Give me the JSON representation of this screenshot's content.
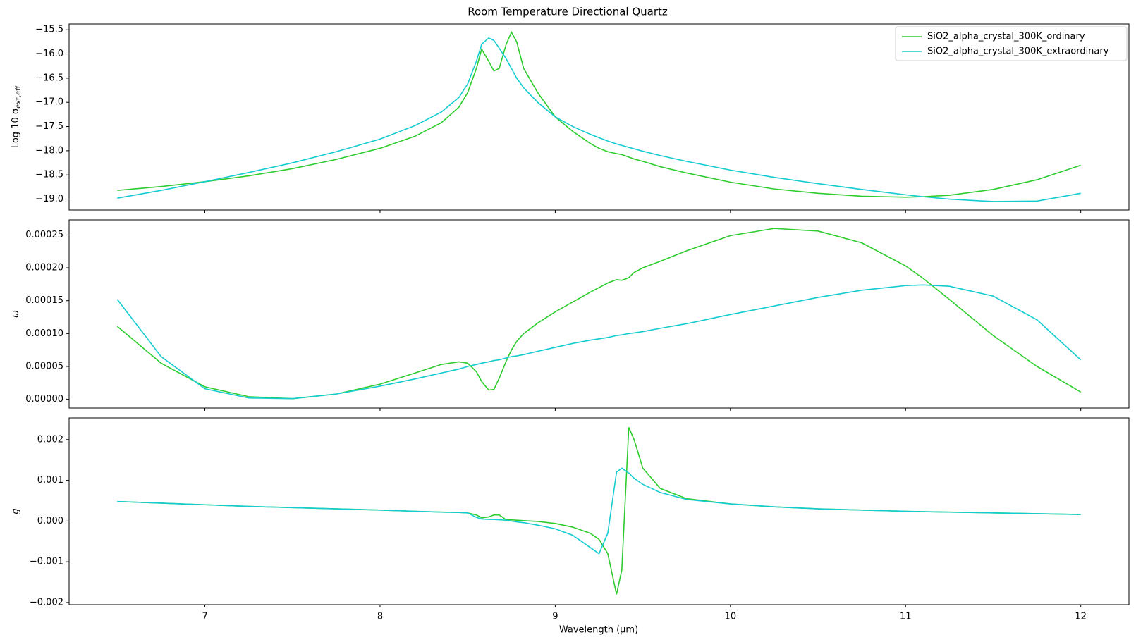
{
  "chart_data": [
    {
      "type": "line",
      "title": "Room Temperature Directional Quartz",
      "y_label": {
        "text": "Log 10 σ",
        "subscript": "ext,eff"
      },
      "legend": "upper right",
      "xlim": [
        6.225,
        12.275
      ],
      "ylim": [
        -19.225,
        -15.38
      ],
      "yticks": [
        {
          "value": -15.5,
          "label": "−15.5"
        },
        {
          "value": -16.0,
          "label": "−16.0"
        },
        {
          "value": -16.5,
          "label": "−16.5"
        },
        {
          "value": -17.0,
          "label": "−17.0"
        },
        {
          "value": -17.5,
          "label": "−17.5"
        },
        {
          "value": -18.0,
          "label": "−18.0"
        },
        {
          "value": -18.5,
          "label": "−18.5"
        },
        {
          "value": -19.0,
          "label": "−19.0"
        }
      ],
      "x": [
        6.5,
        6.75,
        7.0,
        7.25,
        7.5,
        7.75,
        8.0,
        8.2,
        8.35,
        8.45,
        8.5,
        8.55,
        8.58,
        8.62,
        8.65,
        8.68,
        8.72,
        8.75,
        8.78,
        8.82,
        8.9,
        9.0,
        9.1,
        9.2,
        9.25,
        9.3,
        9.35,
        9.38,
        9.42,
        9.45,
        9.5,
        9.6,
        9.75,
        10.0,
        10.25,
        10.5,
        10.75,
        11.0,
        11.1,
        11.25,
        11.5,
        11.75,
        12.0
      ],
      "series": [
        {
          "name": "SiO2_alpha_crystal_300K_ordinary",
          "color": "#2ecc2e",
          "values": [
            -18.82,
            -18.74,
            -18.64,
            -18.52,
            -18.37,
            -18.18,
            -17.95,
            -17.7,
            -17.42,
            -17.1,
            -16.8,
            -16.3,
            -15.9,
            -16.15,
            -16.35,
            -16.3,
            -15.8,
            -15.55,
            -15.75,
            -16.3,
            -16.8,
            -17.3,
            -17.6,
            -17.85,
            -17.95,
            -18.02,
            -18.06,
            -18.08,
            -18.13,
            -18.17,
            -18.22,
            -18.33,
            -18.46,
            -18.65,
            -18.79,
            -18.88,
            -18.94,
            -18.96,
            -18.95,
            -18.92,
            -18.8,
            -18.6,
            -18.3
          ]
        },
        {
          "name": "SiO2_alpha_crystal_300K_extraordinary",
          "color": "#14ccd0",
          "values": [
            -18.98,
            -18.82,
            -18.64,
            -18.45,
            -18.25,
            -18.02,
            -17.76,
            -17.48,
            -17.2,
            -16.9,
            -16.62,
            -16.15,
            -15.8,
            -15.67,
            -15.72,
            -15.88,
            -16.1,
            -16.3,
            -16.5,
            -16.7,
            -17.0,
            -17.3,
            -17.5,
            -17.66,
            -17.73,
            -17.8,
            -17.86,
            -17.89,
            -17.93,
            -17.96,
            -18.01,
            -18.1,
            -18.22,
            -18.4,
            -18.55,
            -18.68,
            -18.8,
            -18.91,
            -18.95,
            -19.0,
            -19.05,
            -19.04,
            -18.88
          ]
        }
      ]
    },
    {
      "type": "line",
      "y_label": {
        "text": "ω"
      },
      "xlim": [
        6.225,
        12.275
      ],
      "ylim": [
        -1.33e-05,
        0.000273
      ],
      "yticks": [
        {
          "value": 0,
          "label": "0.00000"
        },
        {
          "value": 5e-05,
          "label": "0.00005"
        },
        {
          "value": 0.0001,
          "label": "0.00010"
        },
        {
          "value": 0.00015,
          "label": "0.00015"
        },
        {
          "value": 0.0002,
          "label": "0.00020"
        },
        {
          "value": 0.00025,
          "label": "0.00025"
        }
      ],
      "x": [
        6.5,
        6.75,
        7.0,
        7.25,
        7.5,
        7.75,
        8.0,
        8.2,
        8.35,
        8.45,
        8.5,
        8.55,
        8.58,
        8.62,
        8.65,
        8.68,
        8.72,
        8.75,
        8.78,
        8.82,
        8.9,
        9.0,
        9.1,
        9.2,
        9.25,
        9.3,
        9.35,
        9.38,
        9.42,
        9.45,
        9.5,
        9.6,
        9.75,
        10.0,
        10.25,
        10.5,
        10.75,
        11.0,
        11.1,
        11.25,
        11.5,
        11.75,
        12.0
      ],
      "series": [
        {
          "color": "#2ecc2e",
          "values": [
            0.000111,
            5.5e-05,
            1.9e-05,
            4e-06,
            1e-06,
            8e-06,
            2.3e-05,
            4e-05,
            5.3e-05,
            5.7e-05,
            5.5e-05,
            4.2e-05,
            2.7e-05,
            1.4e-05,
            1.5e-05,
            3.2e-05,
            5.8e-05,
            7.5e-05,
            8.8e-05,
            0.0001,
            0.000116,
            0.000133,
            0.000148,
            0.000163,
            0.00017,
            0.000177,
            0.000182,
            0.000181,
            0.000185,
            0.000193,
            0.0002,
            0.00021,
            0.000226,
            0.000249,
            0.00026,
            0.000256,
            0.000238,
            0.000203,
            0.000184,
            0.000152,
            9.7e-05,
            5e-05,
            1.1e-05
          ]
        },
        {
          "color": "#14ccd0",
          "values": [
            0.000152,
            6.5e-05,
            1.6e-05,
            2e-06,
            1e-06,
            8e-06,
            2e-05,
            3.1e-05,
            4e-05,
            4.6e-05,
            5e-05,
            5.3e-05,
            5.5e-05,
            5.7e-05,
            5.9e-05,
            6e-05,
            6.3e-05,
            6.5e-05,
            6.6e-05,
            6.8e-05,
            7.3e-05,
            7.9e-05,
            8.5e-05,
            9e-05,
            9.2e-05,
            9.4e-05,
            9.7e-05,
            9.8e-05,
            0.0001,
            0.000101,
            0.000103,
            0.000108,
            0.000115,
            0.000129,
            0.000142,
            0.000155,
            0.000166,
            0.000173,
            0.000174,
            0.000172,
            0.000157,
            0.000121,
            6e-05
          ]
        }
      ]
    },
    {
      "type": "line",
      "y_label": {
        "text": "g"
      },
      "x_label": "Wavelength (μm)",
      "xlim": [
        6.225,
        12.275
      ],
      "ylim": [
        -0.002053,
        0.002533
      ],
      "xticks": [
        7,
        8,
        9,
        10,
        11,
        12
      ],
      "yticks": [
        {
          "value": -0.002,
          "label": "−0.002"
        },
        {
          "value": -0.001,
          "label": "−0.001"
        },
        {
          "value": 0,
          "label": "0.000"
        },
        {
          "value": 0.001,
          "label": "0.001"
        },
        {
          "value": 0.002,
          "label": "0.002"
        }
      ],
      "x": [
        6.5,
        6.75,
        7.0,
        7.25,
        7.5,
        7.75,
        8.0,
        8.2,
        8.35,
        8.45,
        8.5,
        8.55,
        8.58,
        8.62,
        8.65,
        8.68,
        8.72,
        8.75,
        8.78,
        8.82,
        8.9,
        9.0,
        9.1,
        9.2,
        9.25,
        9.3,
        9.35,
        9.38,
        9.42,
        9.45,
        9.5,
        9.6,
        9.75,
        10.0,
        10.25,
        10.5,
        10.75,
        11.0,
        11.1,
        11.25,
        11.5,
        11.75,
        12.0
      ],
      "series": [
        {
          "color": "#2ecc2e",
          "values": [
            0.00048,
            0.00044,
            0.0004,
            0.00036,
            0.00033,
            0.0003,
            0.00027,
            0.00024,
            0.00022,
            0.00021,
            0.0002,
            0.00015,
            8e-05,
            0.0001,
            0.00015,
            0.00015,
            3e-05,
            3e-05,
            2e-05,
            1e-05,
            -1e-05,
            -6e-05,
            -0.00015,
            -0.0003,
            -0.00045,
            -0.0008,
            -0.0018,
            -0.0012,
            0.0023,
            0.002,
            0.0013,
            0.0008,
            0.00055,
            0.00042,
            0.00035,
            0.0003,
            0.00027,
            0.00024,
            0.00023,
            0.00022,
            0.0002,
            0.00018,
            0.00016
          ]
        },
        {
          "color": "#14ccd0",
          "values": [
            0.00048,
            0.00044,
            0.0004,
            0.00036,
            0.00033,
            0.0003,
            0.00027,
            0.00024,
            0.00022,
            0.00021,
            0.0002,
            9e-05,
            5e-05,
            4e-05,
            4e-05,
            3e-05,
            2e-05,
            0.0,
            -2e-05,
            -4e-05,
            -0.0001,
            -0.00019,
            -0.00035,
            -0.00065,
            -0.0008,
            -0.0003,
            0.0012,
            0.0013,
            0.00118,
            0.00105,
            0.0009,
            0.0007,
            0.00053,
            0.00042,
            0.00035,
            0.0003,
            0.00027,
            0.00024,
            0.00023,
            0.00022,
            0.0002,
            0.00018,
            0.00016
          ]
        }
      ]
    }
  ]
}
